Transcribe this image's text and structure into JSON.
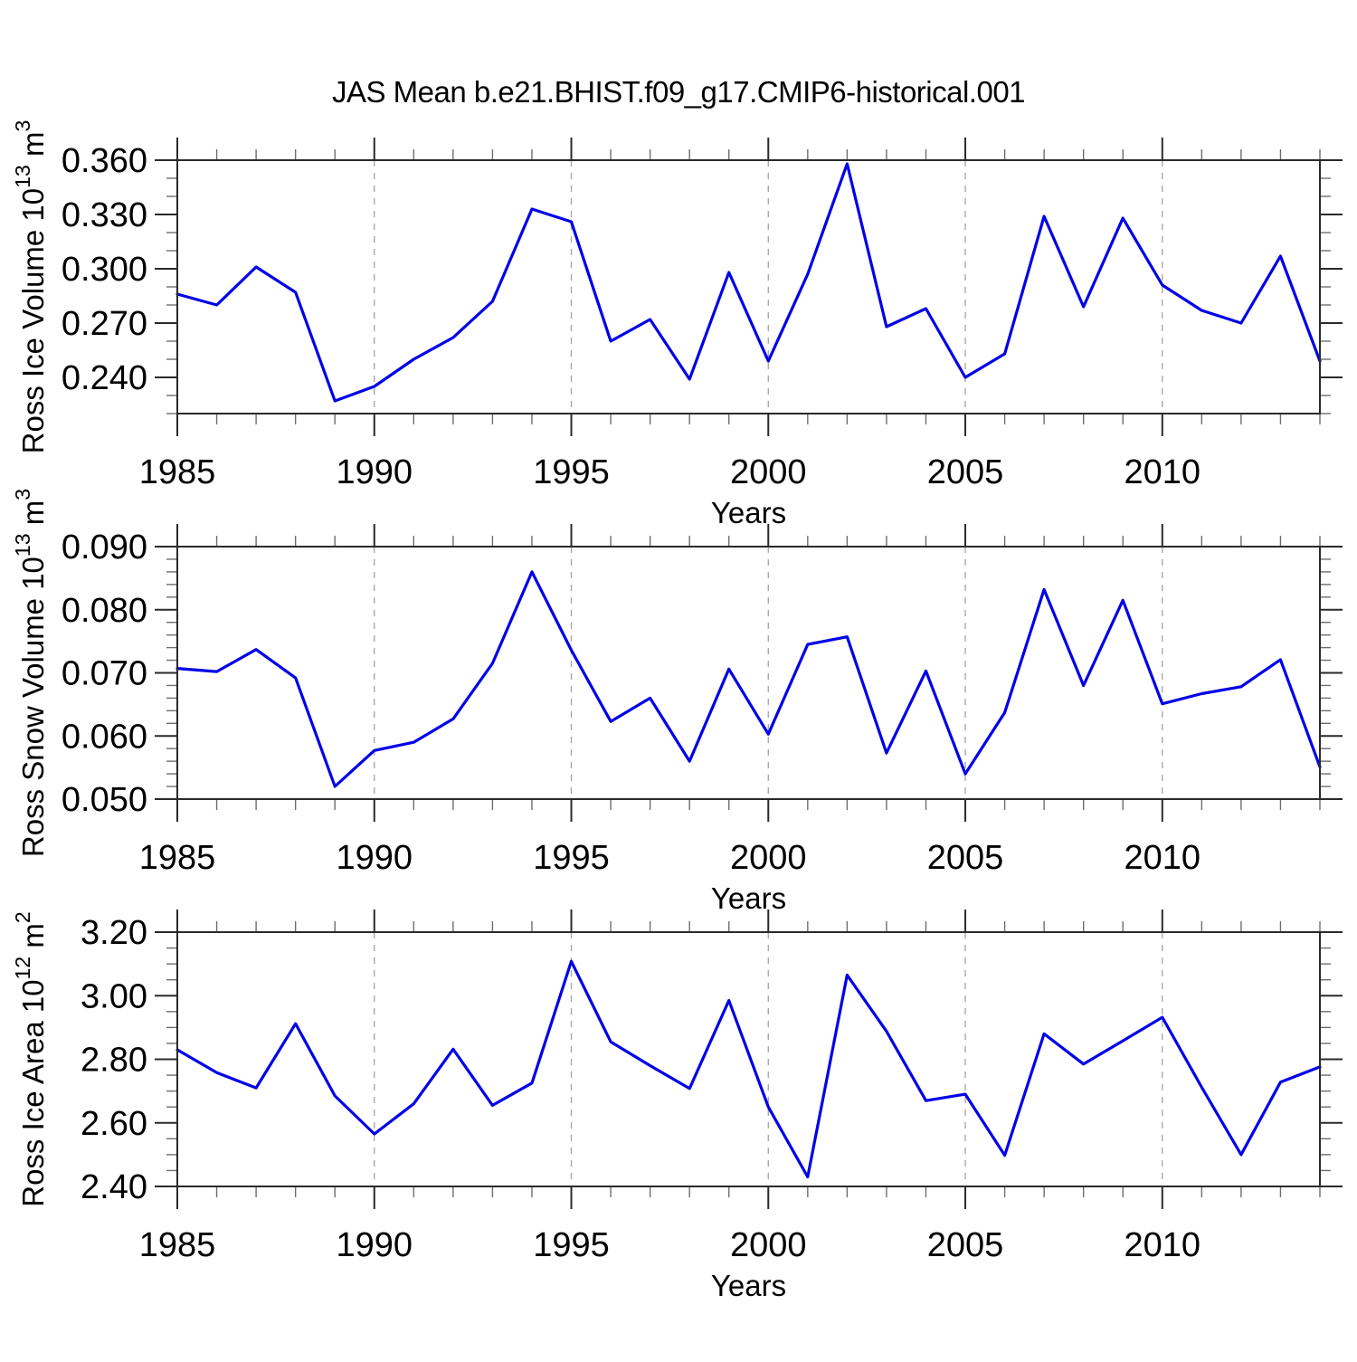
{
  "figure_title": "JAS Mean b.e21.BHIST.f09_g17.CMIP6-historical.001",
  "line_color": "#0000e8",
  "xlabel": "Years",
  "x_major_tick_labels": [
    "1985",
    "1990",
    "1995",
    "2000",
    "2005",
    "2010"
  ],
  "x_major_ticks": [
    1985,
    1990,
    1995,
    2000,
    2005,
    2010
  ],
  "x_gridlines": [
    1990,
    1995,
    2000,
    2005,
    2010
  ],
  "chart_data": [
    {
      "type": "line",
      "name": "ross-ice-volume",
      "ylabel": "Ross Ice Volume 10^{13} m^{3}",
      "xlabel": "Years",
      "xlim": [
        1985,
        2014
      ],
      "ylim": [
        0.22,
        0.36
      ],
      "yticks": [
        0.24,
        0.27,
        0.3,
        0.33,
        0.36
      ],
      "ytick_labels": [
        "0.240",
        "0.270",
        "0.300",
        "0.330",
        "0.360"
      ],
      "ytick_minor_step": 0.01,
      "xtick_minor_step": 1,
      "grid": "x-dashed",
      "legend": "none",
      "x": [
        1985,
        1986,
        1987,
        1988,
        1989,
        1990,
        1991,
        1992,
        1993,
        1994,
        1995,
        1996,
        1997,
        1998,
        1999,
        2000,
        2001,
        2002,
        2003,
        2004,
        2005,
        2006,
        2007,
        2008,
        2009,
        2010,
        2011,
        2012,
        2013,
        2014
      ],
      "values": [
        0.286,
        0.28,
        0.301,
        0.287,
        0.227,
        0.235,
        0.25,
        0.262,
        0.282,
        0.333,
        0.326,
        0.26,
        0.272,
        0.239,
        0.298,
        0.249,
        0.297,
        0.358,
        0.268,
        0.278,
        0.24,
        0.253,
        0.329,
        0.279,
        0.328,
        0.291,
        0.277,
        0.27,
        0.307,
        0.249
      ]
    },
    {
      "type": "line",
      "name": "ross-snow-volume",
      "ylabel": "Ross Snow Volume 10^{13} m^{3}",
      "xlabel": "Years",
      "xlim": [
        1985,
        2014
      ],
      "ylim": [
        0.05,
        0.09
      ],
      "yticks": [
        0.05,
        0.06,
        0.07,
        0.08,
        0.09
      ],
      "ytick_labels": [
        "0.050",
        "0.060",
        "0.070",
        "0.080",
        "0.090"
      ],
      "ytick_minor_step": 0.002,
      "xtick_minor_step": 1,
      "grid": "x-dashed",
      "legend": "none",
      "x": [
        1985,
        1986,
        1987,
        1988,
        1989,
        1990,
        1991,
        1992,
        1993,
        1994,
        1995,
        1996,
        1997,
        1998,
        1999,
        2000,
        2001,
        2002,
        2003,
        2004,
        2005,
        2006,
        2007,
        2008,
        2009,
        2010,
        2011,
        2012,
        2013,
        2014
      ],
      "values": [
        0.0707,
        0.0702,
        0.0737,
        0.0692,
        0.052,
        0.0577,
        0.059,
        0.0627,
        0.0715,
        0.086,
        0.0736,
        0.0623,
        0.066,
        0.056,
        0.0706,
        0.0603,
        0.0745,
        0.0757,
        0.0573,
        0.0703,
        0.054,
        0.0637,
        0.0832,
        0.068,
        0.0815,
        0.0651,
        0.0667,
        0.0678,
        0.0721,
        0.0551
      ]
    },
    {
      "type": "line",
      "name": "ross-ice-area",
      "ylabel": "Ross Ice Area 10^{12} m^{2}",
      "xlabel": "Years",
      "xlim": [
        1985,
        2014
      ],
      "ylim": [
        2.4,
        3.2
      ],
      "yticks": [
        2.4,
        2.6,
        2.8,
        3.0,
        3.2
      ],
      "ytick_labels": [
        "2.40",
        "2.60",
        "2.80",
        "3.00",
        "3.20"
      ],
      "ytick_minor_step": 0.05,
      "xtick_minor_step": 1,
      "grid": "x-dashed",
      "legend": "none",
      "x": [
        1985,
        1986,
        1987,
        1988,
        1989,
        1990,
        1991,
        1992,
        1993,
        1994,
        1995,
        1996,
        1997,
        1998,
        1999,
        2000,
        2001,
        2002,
        2003,
        2004,
        2005,
        2006,
        2007,
        2008,
        2009,
        2010,
        2011,
        2012,
        2013,
        2014
      ],
      "values": [
        2.83,
        2.758,
        2.71,
        2.912,
        2.685,
        2.565,
        2.66,
        2.832,
        2.655,
        2.725,
        3.108,
        2.855,
        2.78,
        2.708,
        2.985,
        2.65,
        2.43,
        3.065,
        2.888,
        2.67,
        2.69,
        2.498,
        2.88,
        2.785,
        2.858,
        2.932,
        2.712,
        2.5,
        2.728,
        2.776
      ]
    }
  ]
}
